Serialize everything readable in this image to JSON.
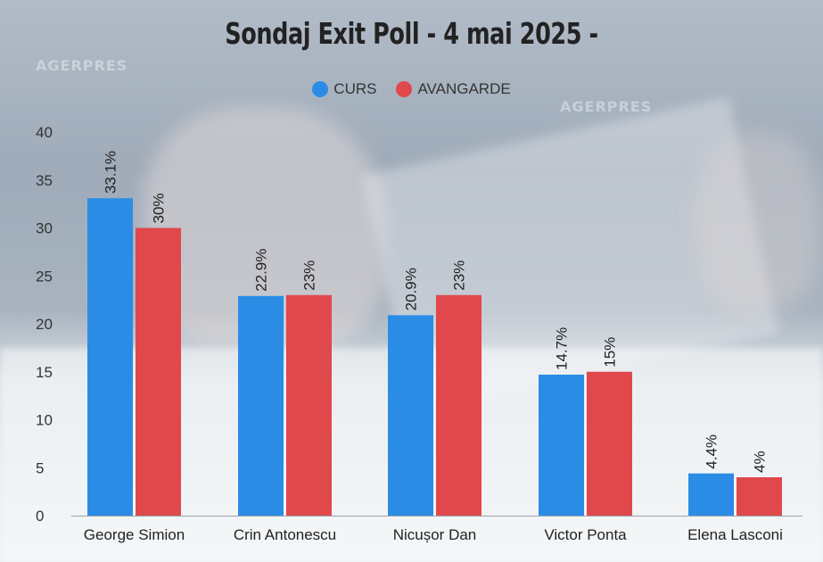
{
  "watermark_text": "AGERPRES",
  "chart_data": {
    "type": "bar",
    "title": "Sondaj Exit Poll - 4 mai 2025 -",
    "categories": [
      "George Simion",
      "Crin Antonescu",
      "Nicușor Dan",
      "Victor Ponta",
      "Elena Lasconi"
    ],
    "series": [
      {
        "name": "CURS",
        "color": "#2b8ce6",
        "values": [
          33.1,
          22.9,
          20.9,
          14.7,
          4.4
        ],
        "labels": [
          "33.1%",
          "22.9%",
          "20.9%",
          "14.7%",
          "4.4%"
        ]
      },
      {
        "name": "AVANGARDE",
        "color": "#e0484c",
        "values": [
          30,
          23,
          23,
          15,
          4
        ],
        "labels": [
          "30%",
          "23%",
          "23%",
          "15%",
          "4%"
        ]
      }
    ],
    "yticks": [
      0,
      5,
      10,
      15,
      20,
      25,
      30,
      35,
      40
    ],
    "ylim": [
      0,
      40
    ],
    "xlabel": "",
    "ylabel": "",
    "grid": false,
    "legend_position": "top-center"
  }
}
